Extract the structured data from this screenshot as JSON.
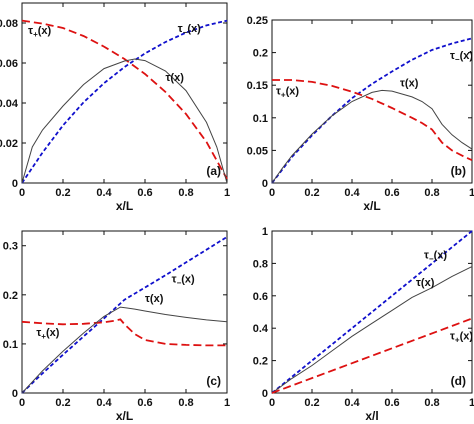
{
  "chart_data": [
    {
      "type": "line",
      "panel_label": "(a)",
      "xlabel": "x/L",
      "xlim": [
        0,
        1
      ],
      "ylim": [
        0,
        0.09
      ],
      "xticks": [
        "0",
        "0.2",
        "0.4",
        "0.6",
        "0.8",
        "1"
      ],
      "yticks": [
        "0",
        "0.02",
        "0.04",
        "0.06",
        "0.08"
      ],
      "annotations": [
        {
          "text": "τ+(x)",
          "x": 0.03,
          "y": 0.0745
        },
        {
          "text": "τ−(x)",
          "x": 0.76,
          "y": 0.0755
        },
        {
          "text": "τ(x)",
          "x": 0.7,
          "y": 0.051
        }
      ],
      "series": [
        {
          "color": "#1010cc",
          "dash": "dashed-short",
          "x": [
            0,
            0.1,
            0.2,
            0.3,
            0.4,
            0.5,
            0.6,
            0.7,
            0.8,
            0.9,
            1.0
          ],
          "y": [
            0,
            0.0152,
            0.0288,
            0.0403,
            0.0499,
            0.058,
            0.0648,
            0.0705,
            0.0752,
            0.0788,
            0.0812
          ]
        },
        {
          "color": "#dd1111",
          "dash": "dashed-long",
          "x": [
            0,
            0.1,
            0.2,
            0.3,
            0.4,
            0.5,
            0.6,
            0.7,
            0.8,
            0.9,
            1.0
          ],
          "y": [
            0.0812,
            0.0797,
            0.0775,
            0.0735,
            0.0682,
            0.062,
            0.0545,
            0.0455,
            0.0345,
            0.0205,
            0.002
          ]
        },
        {
          "color": "#444444",
          "dash": "solid",
          "x": [
            0,
            0.05,
            0.1,
            0.2,
            0.3,
            0.4,
            0.5,
            0.55,
            0.6,
            0.7,
            0.8,
            0.9,
            0.95,
            1.0
          ],
          "y": [
            0,
            0.018,
            0.0265,
            0.0385,
            0.0492,
            0.0572,
            0.061,
            0.062,
            0.0612,
            0.056,
            0.0462,
            0.0303,
            0.018,
            0
          ]
        }
      ]
    },
    {
      "type": "line",
      "panel_label": "(b)",
      "xlabel": "x/L",
      "xlim": [
        0,
        1
      ],
      "ylim": [
        0,
        0.25
      ],
      "xticks": [
        "0",
        "0.2",
        "0.4",
        "0.6",
        "0.8",
        "1"
      ],
      "yticks": [
        "0",
        "0.05",
        "0.1",
        "0.15",
        "0.2",
        "0.25"
      ],
      "annotations": [
        {
          "text": "τ+(x)",
          "x": 0.02,
          "y": 0.136
        },
        {
          "text": "τ−(x)",
          "x": 0.89,
          "y": 0.19
        },
        {
          "text": "τ(x)",
          "x": 0.64,
          "y": 0.148
        }
      ],
      "series": [
        {
          "color": "#1010cc",
          "dash": "dashed-short",
          "x": [
            0,
            0.1,
            0.2,
            0.3,
            0.4,
            0.5,
            0.6,
            0.7,
            0.8,
            0.9,
            1.0
          ],
          "y": [
            0,
            0.04,
            0.073,
            0.103,
            0.13,
            0.152,
            0.171,
            0.189,
            0.204,
            0.214,
            0.222
          ]
        },
        {
          "color": "#dd1111",
          "dash": "dashed-long",
          "x": [
            0,
            0.1,
            0.2,
            0.3,
            0.4,
            0.5,
            0.6,
            0.7,
            0.75,
            0.8,
            0.85,
            0.9,
            0.95,
            1.0
          ],
          "y": [
            0.158,
            0.158,
            0.155,
            0.149,
            0.14,
            0.129,
            0.115,
            0.1,
            0.092,
            0.082,
            0.062,
            0.05,
            0.042,
            0.035
          ]
        },
        {
          "color": "#444444",
          "dash": "solid",
          "x": [
            0,
            0.05,
            0.1,
            0.2,
            0.3,
            0.4,
            0.5,
            0.55,
            0.6,
            0.7,
            0.75,
            0.8,
            0.85,
            0.9,
            0.95,
            1.0
          ],
          "y": [
            0,
            0.022,
            0.042,
            0.075,
            0.103,
            0.125,
            0.139,
            0.142,
            0.141,
            0.132,
            0.125,
            0.114,
            0.09,
            0.074,
            0.062,
            0.052
          ]
        }
      ]
    },
    {
      "type": "line",
      "panel_label": "(c)",
      "xlabel": "x/L",
      "xlim": [
        0,
        1
      ],
      "ylim": [
        0,
        0.33
      ],
      "xticks": [
        "0",
        "0.2",
        "0.4",
        "0.6",
        "0.8",
        "1"
      ],
      "yticks": [
        "0",
        "0.1",
        "0.2",
        "0.3"
      ],
      "annotations": [
        {
          "text": "τ−(x)",
          "x": 0.73,
          "y": 0.225
        },
        {
          "text": "τ(x)",
          "x": 0.6,
          "y": 0.185
        },
        {
          "text": "τ+(x)",
          "x": 0.07,
          "y": 0.116
        }
      ],
      "series": [
        {
          "color": "#1010cc",
          "dash": "dashed-short",
          "x": [
            0,
            0.1,
            0.2,
            0.3,
            0.4,
            0.5,
            0.6,
            0.7,
            0.8,
            0.9,
            1.0
          ],
          "y": [
            0,
            0.04,
            0.078,
            0.115,
            0.152,
            0.19,
            0.215,
            0.24,
            0.266,
            0.292,
            0.318
          ]
        },
        {
          "color": "#dd1111",
          "dash": "dashed-long",
          "x": [
            0,
            0.1,
            0.2,
            0.3,
            0.4,
            0.45,
            0.48,
            0.5,
            0.55,
            0.6,
            0.7,
            0.8,
            0.9,
            1.0
          ],
          "y": [
            0.145,
            0.142,
            0.14,
            0.141,
            0.144,
            0.147,
            0.15,
            0.14,
            0.12,
            0.108,
            0.1,
            0.098,
            0.097,
            0.097
          ]
        },
        {
          "color": "#444444",
          "dash": "solid",
          "x": [
            0,
            0.1,
            0.2,
            0.3,
            0.4,
            0.48,
            0.55,
            0.6,
            0.7,
            0.8,
            0.9,
            1.0
          ],
          "y": [
            0,
            0.045,
            0.085,
            0.122,
            0.156,
            0.175,
            0.171,
            0.167,
            0.16,
            0.154,
            0.149,
            0.145
          ]
        }
      ]
    },
    {
      "type": "line",
      "panel_label": "(d)",
      "xlabel": "x/l",
      "xlim": [
        0,
        1
      ],
      "ylim": [
        0,
        1
      ],
      "xticks": [
        "0",
        "0.2",
        "0.4",
        "0.6",
        "0.8",
        "1"
      ],
      "yticks": [
        "0",
        "0.2",
        "0.4",
        "0.6",
        "0.8",
        "1"
      ],
      "annotations": [
        {
          "text": "τ−(x)",
          "x": 0.76,
          "y": 0.83
        },
        {
          "text": "τ(x)",
          "x": 0.72,
          "y": 0.66
        },
        {
          "text": "τ+(x)",
          "x": 0.89,
          "y": 0.33
        }
      ],
      "series": [
        {
          "color": "#1010cc",
          "dash": "dashed-short",
          "x": [
            0,
            1
          ],
          "y": [
            0,
            1
          ]
        },
        {
          "color": "#444444",
          "dash": "solid",
          "x": [
            0,
            0.1,
            0.2,
            0.3,
            0.4,
            0.5,
            0.6,
            0.7,
            0.8,
            0.9,
            1.0
          ],
          "y": [
            0,
            0.09,
            0.17,
            0.26,
            0.35,
            0.43,
            0.51,
            0.59,
            0.65,
            0.72,
            0.78
          ]
        },
        {
          "color": "#dd1111",
          "dash": "dashed-long",
          "x": [
            0,
            1
          ],
          "y": [
            0,
            0.46
          ]
        }
      ]
    }
  ]
}
